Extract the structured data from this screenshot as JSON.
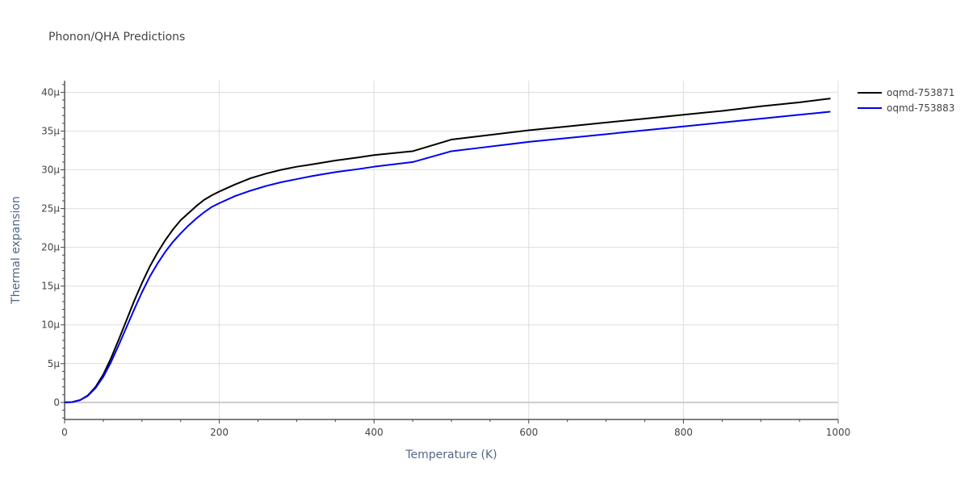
{
  "chart_data": {
    "type": "line",
    "title": "Phonon/QHA Predictions",
    "xlabel": "Temperature (K)",
    "ylabel": "Thermal expansion",
    "xlim": [
      0,
      1000
    ],
    "ylim": [
      -2.2e-06,
      4.15e-05
    ],
    "xticks": [
      0,
      200,
      400,
      600,
      800,
      1000
    ],
    "xtick_labels": [
      "0",
      "200",
      "400",
      "600",
      "800",
      "1000"
    ],
    "yticks": [
      0,
      5e-06,
      1e-05,
      1.5e-05,
      2e-05,
      2.5e-05,
      3e-05,
      3.5e-05,
      4e-05
    ],
    "ytick_labels": [
      "0",
      "5μ",
      "10μ",
      "15μ",
      "20μ",
      "25μ",
      "30μ",
      "35μ",
      "40μ"
    ],
    "grid": true,
    "legend_position": "top-right",
    "series": [
      {
        "name": "oqmd-753871",
        "color": "#000000",
        "x": [
          0,
          10,
          20,
          30,
          40,
          50,
          60,
          70,
          80,
          90,
          100,
          110,
          120,
          130,
          140,
          150,
          160,
          170,
          180,
          190,
          200,
          220,
          240,
          260,
          280,
          300,
          320,
          350,
          380,
          400,
          450,
          500,
          550,
          600,
          650,
          700,
          750,
          800,
          850,
          900,
          950,
          990
        ],
        "y": [
          0,
          5e-08,
          3e-07,
          9e-07,
          2e-06,
          3.6e-06,
          5.7e-06,
          8.1e-06,
          1.06e-05,
          1.31e-05,
          1.54e-05,
          1.75e-05,
          1.93e-05,
          2.09e-05,
          2.23e-05,
          2.35e-05,
          2.44e-05,
          2.53e-05,
          2.61e-05,
          2.67e-05,
          2.72e-05,
          2.81e-05,
          2.89e-05,
          2.95e-05,
          3e-05,
          3.04e-05,
          3.07e-05,
          3.12e-05,
          3.16e-05,
          3.19e-05,
          3.24e-05,
          3.39e-05,
          3.45e-05,
          3.51e-05,
          3.56e-05,
          3.61e-05,
          3.66e-05,
          3.71e-05,
          3.76e-05,
          3.82e-05,
          3.87e-05,
          3.92e-05
        ]
      },
      {
        "name": "oqmd-753883",
        "color": "#0000ee",
        "x": [
          0,
          10,
          20,
          30,
          40,
          50,
          60,
          70,
          80,
          90,
          100,
          110,
          120,
          130,
          140,
          150,
          160,
          170,
          180,
          190,
          200,
          220,
          240,
          260,
          280,
          300,
          320,
          350,
          380,
          400,
          450,
          500,
          550,
          600,
          650,
          700,
          750,
          800,
          850,
          900,
          950,
          990
        ],
        "y": [
          0,
          5e-08,
          3e-07,
          8.5e-07,
          1.85e-06,
          3.3e-06,
          5.2e-06,
          7.4e-06,
          9.7e-06,
          1.2e-05,
          1.42e-05,
          1.62e-05,
          1.79e-05,
          1.94e-05,
          2.07e-05,
          2.18e-05,
          2.28e-05,
          2.37e-05,
          2.45e-05,
          2.52e-05,
          2.57e-05,
          2.66e-05,
          2.73e-05,
          2.79e-05,
          2.84e-05,
          2.88e-05,
          2.92e-05,
          2.97e-05,
          3.01e-05,
          3.04e-05,
          3.1e-05,
          3.24e-05,
          3.3e-05,
          3.36e-05,
          3.41e-05,
          3.46e-05,
          3.51e-05,
          3.56e-05,
          3.61e-05,
          3.66e-05,
          3.71e-05,
          3.75e-05
        ]
      }
    ]
  }
}
